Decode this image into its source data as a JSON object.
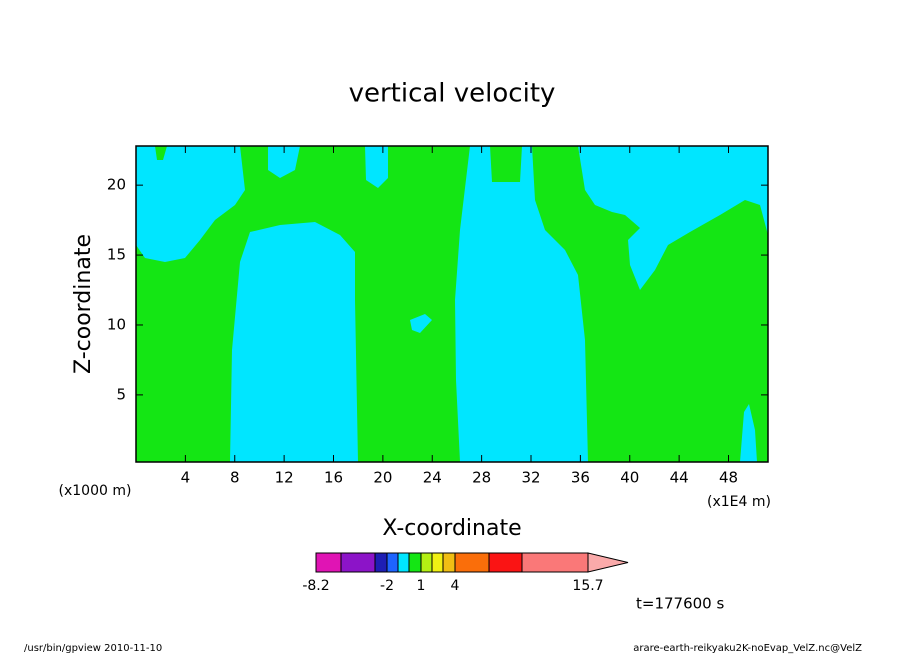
{
  "chart_data": {
    "type": "contour",
    "title": "vertical velocity",
    "x_label": "X-coordinate",
    "y_label": "Z-coordinate",
    "x_unit": "(x1000 m)",
    "x_unit2": "(x1E4 m)",
    "xlim": [
      0,
      51.2
    ],
    "xticks": [
      4,
      8,
      12,
      16,
      20,
      24,
      28,
      32,
      36,
      40,
      44,
      48
    ],
    "ylim": [
      0.2,
      22.8
    ],
    "yticks": [
      5,
      10,
      15,
      20
    ],
    "colorbar": {
      "levels": [
        -8.2,
        -6,
        -3,
        -2,
        -1,
        0,
        1,
        2,
        3,
        4,
        7,
        10,
        15.7
      ],
      "colors": [
        "#e014b4",
        "#8c14c8",
        "#1e1eb4",
        "#1e64ff",
        "#00e6ff",
        "#14e614",
        "#b4f014",
        "#f0f014",
        "#f0be14",
        "#fa6e0a",
        "#fa1414",
        "#fa7878",
        "#faaaaa"
      ],
      "ticks": [
        -8.2,
        -2,
        1,
        4,
        15.7
      ]
    },
    "time_label": "t=177600 s",
    "footer_left": "/usr/bin/gpview   2010-11-10",
    "footer_right": "arare-earth-reikyaku2K-noEvap_VelZ.nc@VelZ"
  }
}
